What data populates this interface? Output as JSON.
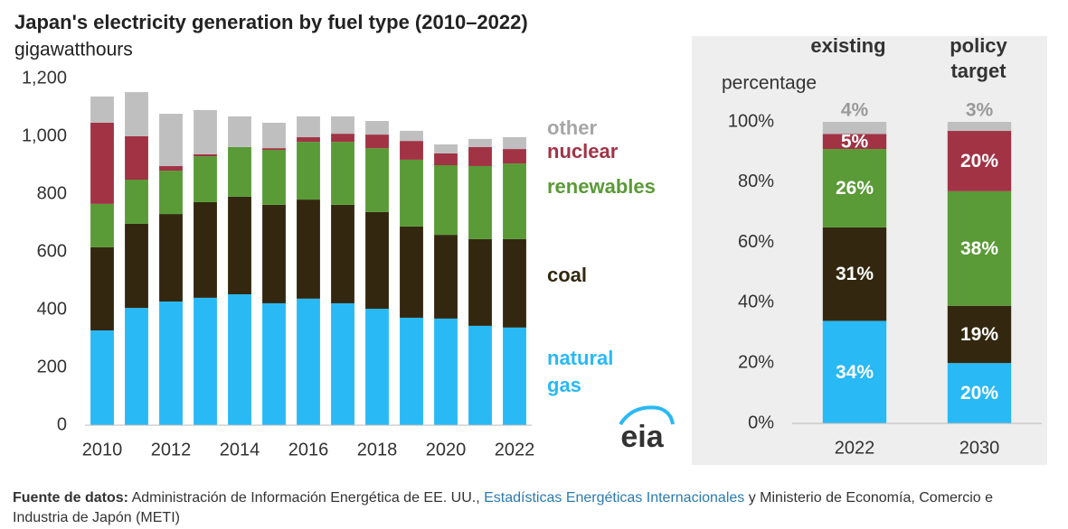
{
  "chart_data": [
    {
      "type": "bar",
      "stacked": true,
      "title": "Japan's electricity generation by fuel type (2010–2022)",
      "y_label": "gigawatthours",
      "x": [
        2010,
        2011,
        2012,
        2013,
        2014,
        2015,
        2016,
        2017,
        2018,
        2019,
        2020,
        2021,
        2022
      ],
      "xlim": [
        2009.5,
        2022.5
      ],
      "xticks": [
        2010,
        2012,
        2014,
        2016,
        2018,
        2020,
        2022
      ],
      "ylim": [
        0,
        1200
      ],
      "yticks": [
        0,
        200,
        400,
        600,
        800,
        {
          "value": 1000,
          "label": "1,000"
        },
        {
          "value": 1200,
          "label": "1,200"
        }
      ],
      "grid": false,
      "series": [
        {
          "name": "natural gas",
          "color": "#29b9f5",
          "values": [
            328,
            406,
            428,
            441,
            453,
            422,
            438,
            422,
            403,
            372,
            369,
            344,
            338
          ]
        },
        {
          "name": "coal",
          "color": "#33280f",
          "values": [
            288,
            291,
            303,
            331,
            338,
            341,
            343,
            341,
            335,
            316,
            290,
            300,
            306
          ]
        },
        {
          "name": "renewables",
          "color": "#5a9a37",
          "values": [
            150,
            153,
            150,
            159,
            172,
            190,
            200,
            218,
            221,
            231,
            241,
            253,
            262
          ]
        },
        {
          "name": "nuclear",
          "color": "#a13345",
          "values": [
            281,
            150,
            16,
            7,
            0,
            6,
            16,
            28,
            47,
            65,
            41,
            66,
            50
          ]
        },
        {
          "name": "other",
          "color": "#bfbfbf",
          "values": [
            91,
            153,
            181,
            153,
            106,
            88,
            72,
            60,
            47,
            35,
            31,
            28,
            41
          ]
        }
      ]
    },
    {
      "type": "bar",
      "stacked": true,
      "y_label": "percentage",
      "column_headers": [
        "existing",
        "policy target"
      ],
      "categories": [
        "2022",
        "2030"
      ],
      "ylim": [
        0,
        100
      ],
      "yticks": [
        {
          "value": 0,
          "label": "0%"
        },
        {
          "value": 20,
          "label": "20%"
        },
        {
          "value": 40,
          "label": "40%"
        },
        {
          "value": 60,
          "label": "60%"
        },
        {
          "value": 80,
          "label": "80%"
        },
        {
          "value": 100,
          "label": "100%"
        }
      ],
      "grid": false,
      "series": [
        {
          "color": "#29b9f5",
          "values": [
            34,
            20
          ],
          "value_labels": [
            "34%",
            "20%"
          ]
        },
        {
          "color": "#33280f",
          "values": [
            31,
            19
          ],
          "value_labels": [
            "31%",
            "19%"
          ]
        },
        {
          "color": "#5a9a37",
          "values": [
            26,
            38
          ],
          "value_labels": [
            "26%",
            "38%"
          ]
        },
        {
          "color": "#a13345",
          "values": [
            5,
            20
          ],
          "value_labels": [
            "5%",
            "20%"
          ]
        },
        {
          "color": "#bfbfbf",
          "values": [
            4,
            3
          ],
          "value_labels": [
            "4%",
            "3%"
          ]
        }
      ]
    }
  ],
  "logo": "eia",
  "source": {
    "label": "Fuente de datos:",
    "text1": "Administración de Información Energética de EE. UU.,",
    "link": "Estadísticas Energéticas Internacionales",
    "text2": "y Ministerio de Economía, Comercio e Industria de Japón (METI)"
  }
}
